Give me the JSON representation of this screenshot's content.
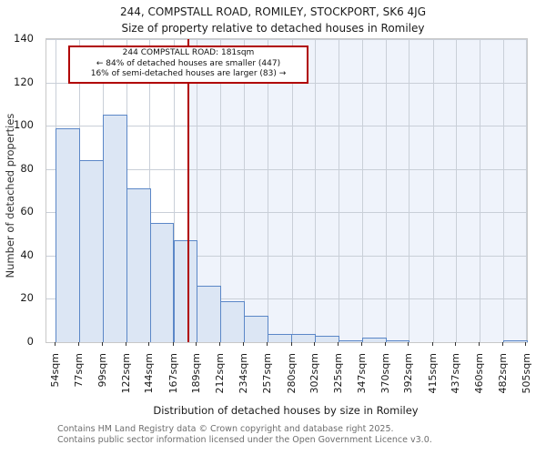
{
  "header": {
    "title": "244, COMPSTALL ROAD, ROMILEY, STOCKPORT, SK6 4JG",
    "subtitle": "Size of property relative to detached houses in Romiley"
  },
  "annotation": {
    "line1": "244 COMPSTALL ROAD: 181sqm",
    "line2": "← 84% of detached houses are smaller (447)",
    "line3": "16% of semi-detached houses are larger (83) →"
  },
  "footer": {
    "line1": "Contains HM Land Registry data © Crown copyright and database right 2025.",
    "line2": "Contains public sector information licensed under the Open Government Licence v3.0."
  },
  "chart_data": {
    "type": "bar",
    "title": "244, COMPSTALL ROAD, ROMILEY, STOCKPORT, SK6 4JG",
    "subtitle": "Size of property relative to detached houses in Romiley",
    "xlabel": "Distribution of detached houses by size in Romiley",
    "ylabel": "Number of detached properties",
    "bin_edges_sqm": [
      54,
      77,
      99,
      122,
      144,
      167,
      189,
      212,
      234,
      257,
      280,
      302,
      325,
      347,
      370,
      392,
      415,
      437,
      460,
      482,
      505
    ],
    "categories": [
      "54sqm",
      "77sqm",
      "99sqm",
      "122sqm",
      "144sqm",
      "167sqm",
      "189sqm",
      "212sqm",
      "234sqm",
      "257sqm",
      "280sqm",
      "302sqm",
      "325sqm",
      "347sqm",
      "370sqm",
      "392sqm",
      "415sqm",
      "437sqm",
      "460sqm",
      "482sqm",
      "505sqm"
    ],
    "values": [
      99,
      84,
      105,
      71,
      55,
      47,
      26,
      19,
      12,
      4,
      4,
      3,
      1,
      2,
      1,
      0,
      0,
      0,
      0,
      1
    ],
    "marker_value_sqm": 181,
    "ylim": [
      0,
      140
    ],
    "yticks": [
      0,
      20,
      40,
      60,
      80,
      100,
      120,
      140
    ],
    "grid": true,
    "legend": false,
    "colors": {
      "bar_fill": "#dce6f4",
      "bar_edge": "#5b87c7",
      "marker_line": "#b00000",
      "shade_right_of_marker": "#eff3fb",
      "grid_line": "#c9cfd8"
    }
  }
}
